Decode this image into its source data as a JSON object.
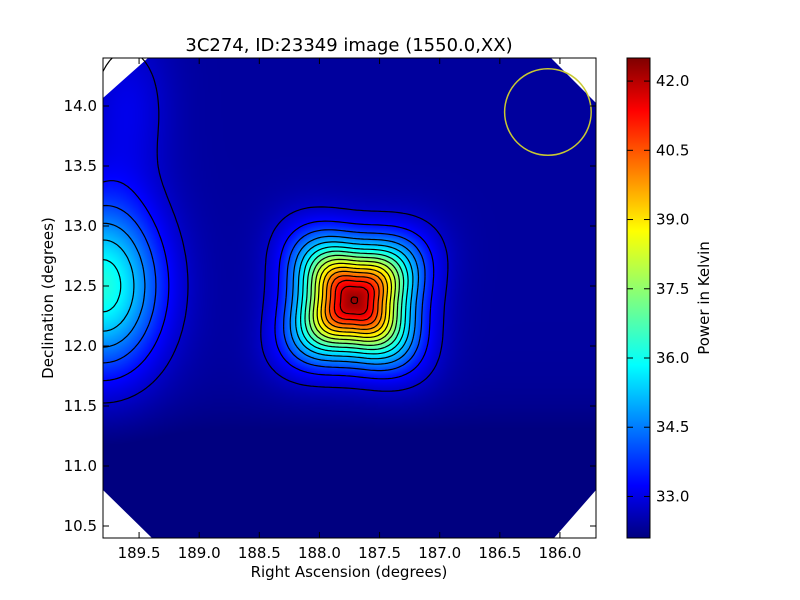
{
  "chart_data": {
    "type": "heatmap",
    "title": "3C274, ID:23349 image (1550.0,XX)",
    "xlabel": "Right Ascension (degrees)",
    "ylabel": "Declination (degrees)",
    "colorbar_label": "Power in Kelvin",
    "xlim": [
      189.8,
      185.7
    ],
    "ylim": [
      10.4,
      14.4
    ],
    "x_ticks": [
      "189.5",
      "189.0",
      "188.5",
      "188.0",
      "187.5",
      "187.0",
      "186.5",
      "186.0"
    ],
    "x_tick_values": [
      189.5,
      189.0,
      188.5,
      188.0,
      187.5,
      187.0,
      186.5,
      186.0
    ],
    "y_ticks": [
      "10.5",
      "11.0",
      "11.5",
      "12.0",
      "12.5",
      "13.0",
      "13.5",
      "14.0"
    ],
    "y_tick_values": [
      10.5,
      11.0,
      11.5,
      12.0,
      12.5,
      13.0,
      13.5,
      14.0
    ],
    "colorbar_range": [
      32.1,
      42.5
    ],
    "colorbar_ticks": [
      "33.0",
      "34.5",
      "36.0",
      "37.5",
      "39.0",
      "40.5",
      "42.0"
    ],
    "colorbar_tick_values": [
      33.0,
      34.5,
      36.0,
      37.5,
      39.0,
      40.5,
      42.0
    ],
    "colormap": "jet",
    "sources": [
      {
        "ra": 187.71,
        "dec": 12.38,
        "peak_kelvin": 42.2
      },
      {
        "ra": 189.8,
        "dec": 12.5,
        "peak_kelvin": 36.3
      }
    ],
    "beam_circle": {
      "ra": 186.1,
      "dec": 13.95,
      "radius_deg": 0.36,
      "color": "#c8c832"
    },
    "contour_color": "#000000"
  }
}
